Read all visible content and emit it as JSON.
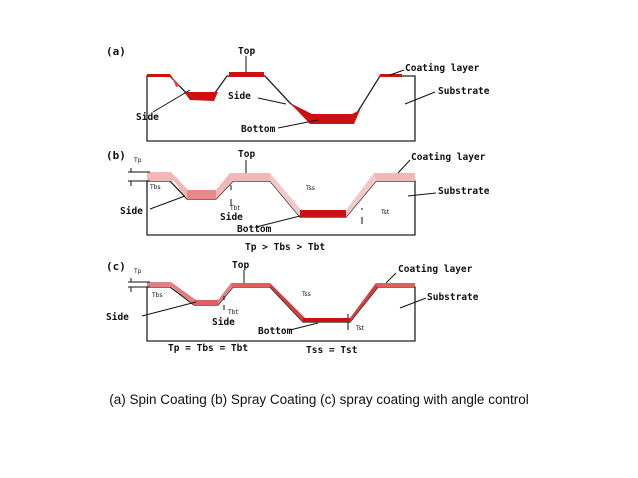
{
  "caption": "(a) Spin Coating (b) Spray Coating (c) spray coating with angle control",
  "colors": {
    "coating_dark": "#cc1111",
    "coating_light": "#f2b8b8",
    "outline": "#222222"
  },
  "panels": [
    {
      "id": "a",
      "panel_label": "(a)",
      "labels": {
        "top": "Top",
        "coating": "Coating layer",
        "substrate": "Substrate",
        "side_left": "Side",
        "side_mid": "Side",
        "bottom": "Bottom"
      }
    },
    {
      "id": "b",
      "panel_label": "(b)",
      "labels": {
        "top": "Top",
        "coating": "Coating layer",
        "substrate": "Substrate",
        "side_left": "Side",
        "side_mid": "Side",
        "bottom": "Bottom"
      },
      "relation": "Tp > Tbs > Tbt"
    },
    {
      "id": "c",
      "panel_label": "(c)",
      "labels": {
        "top": "Top",
        "coating": "Coating layer",
        "substrate": "Substrate",
        "side_left": "Side",
        "side_mid": "Side",
        "bottom": "Bottom"
      },
      "relation_left": "Tp = Tbs = Tbt",
      "relation_right": "Tss = Tst"
    }
  ]
}
